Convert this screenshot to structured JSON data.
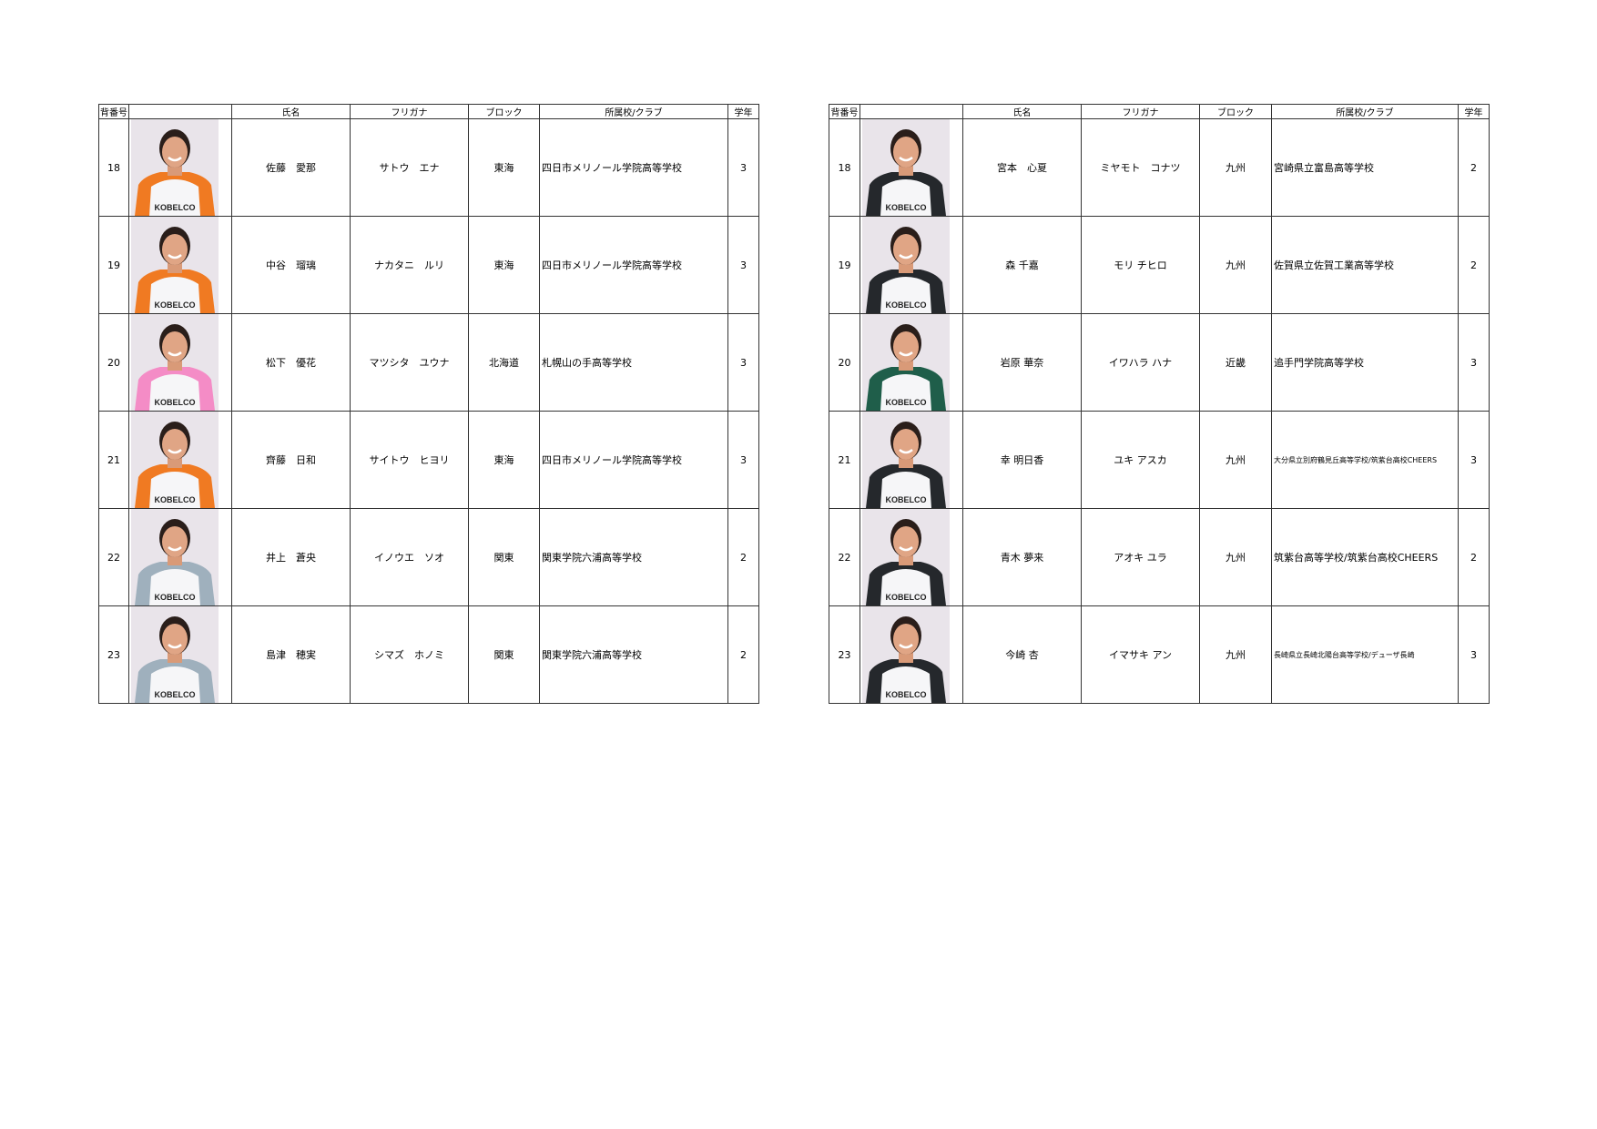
{
  "headers": [
    "背番号",
    "",
    "氏名",
    "フリガナ",
    "ブロック",
    "所属校/クラブ",
    "学年"
  ],
  "jersey_logo": "KOBELCO",
  "colors": {
    "orange": "#f07a22",
    "pink": "#f48cc6",
    "gray": "#9fb0bd",
    "dark": "#25282c",
    "green": "#1f5e4a"
  },
  "tables": [
    {
      "rows": [
        {
          "number": "18",
          "name": "佐藤　愛那",
          "furigana": "サトウ　エナ",
          "block": "東海",
          "school": "四日市メリノール学院高等学校",
          "grade": "3",
          "jersey": "orange"
        },
        {
          "number": "19",
          "name": "中谷　瑠璃",
          "furigana": "ナカタニ　ルリ",
          "block": "東海",
          "school": "四日市メリノール学院高等学校",
          "grade": "3",
          "jersey": "orange"
        },
        {
          "number": "20",
          "name": "松下　優花",
          "furigana": "マツシタ　ユウナ",
          "block": "北海道",
          "school": "札幌山の手高等学校",
          "grade": "3",
          "jersey": "pink"
        },
        {
          "number": "21",
          "name": "齊藤　日和",
          "furigana": "サイトウ　ヒヨリ",
          "block": "東海",
          "school": "四日市メリノール学院高等学校",
          "grade": "3",
          "jersey": "orange"
        },
        {
          "number": "22",
          "name": "井上　蒼央",
          "furigana": "イノウエ　ソオ",
          "block": "関東",
          "school": "関東学院六浦高等学校",
          "grade": "2",
          "jersey": "gray"
        },
        {
          "number": "23",
          "name": "島津　穂実",
          "furigana": "シマズ　ホノミ",
          "block": "関東",
          "school": "関東学院六浦高等学校",
          "grade": "2",
          "jersey": "gray"
        }
      ]
    },
    {
      "rows": [
        {
          "number": "18",
          "name": "宮本　心夏",
          "furigana": "ミヤモト　コナツ",
          "block": "九州",
          "school": "宮崎県立富島高等学校",
          "grade": "2",
          "jersey": "dark"
        },
        {
          "number": "19",
          "name": "森 千嘉",
          "furigana": "モリ チヒロ",
          "block": "九州",
          "school": "佐賀県立佐賀工業高等学校",
          "grade": "2",
          "jersey": "dark"
        },
        {
          "number": "20",
          "name": "岩原 華奈",
          "furigana": "イワハラ ハナ",
          "block": "近畿",
          "school": "追手門学院高等学校",
          "grade": "3",
          "jersey": "green"
        },
        {
          "number": "21",
          "name": "幸 明日香",
          "furigana": "ユキ アスカ",
          "block": "九州",
          "school": "大分県立別府鶴見丘高等学校/筑紫台高校CHEERS",
          "grade": "3",
          "jersey": "dark",
          "small": true
        },
        {
          "number": "22",
          "name": "青木 夢来",
          "furigana": "アオキ ユラ",
          "block": "九州",
          "school": "筑紫台高等学校/筑紫台高校CHEERS",
          "grade": "2",
          "jersey": "dark"
        },
        {
          "number": "23",
          "name": "今崎 杏",
          "furigana": "イマサキ アン",
          "block": "九州",
          "school": "長崎県立長崎北陽台高等学校/デューザ長崎",
          "grade": "3",
          "jersey": "dark",
          "small": true
        }
      ]
    }
  ]
}
